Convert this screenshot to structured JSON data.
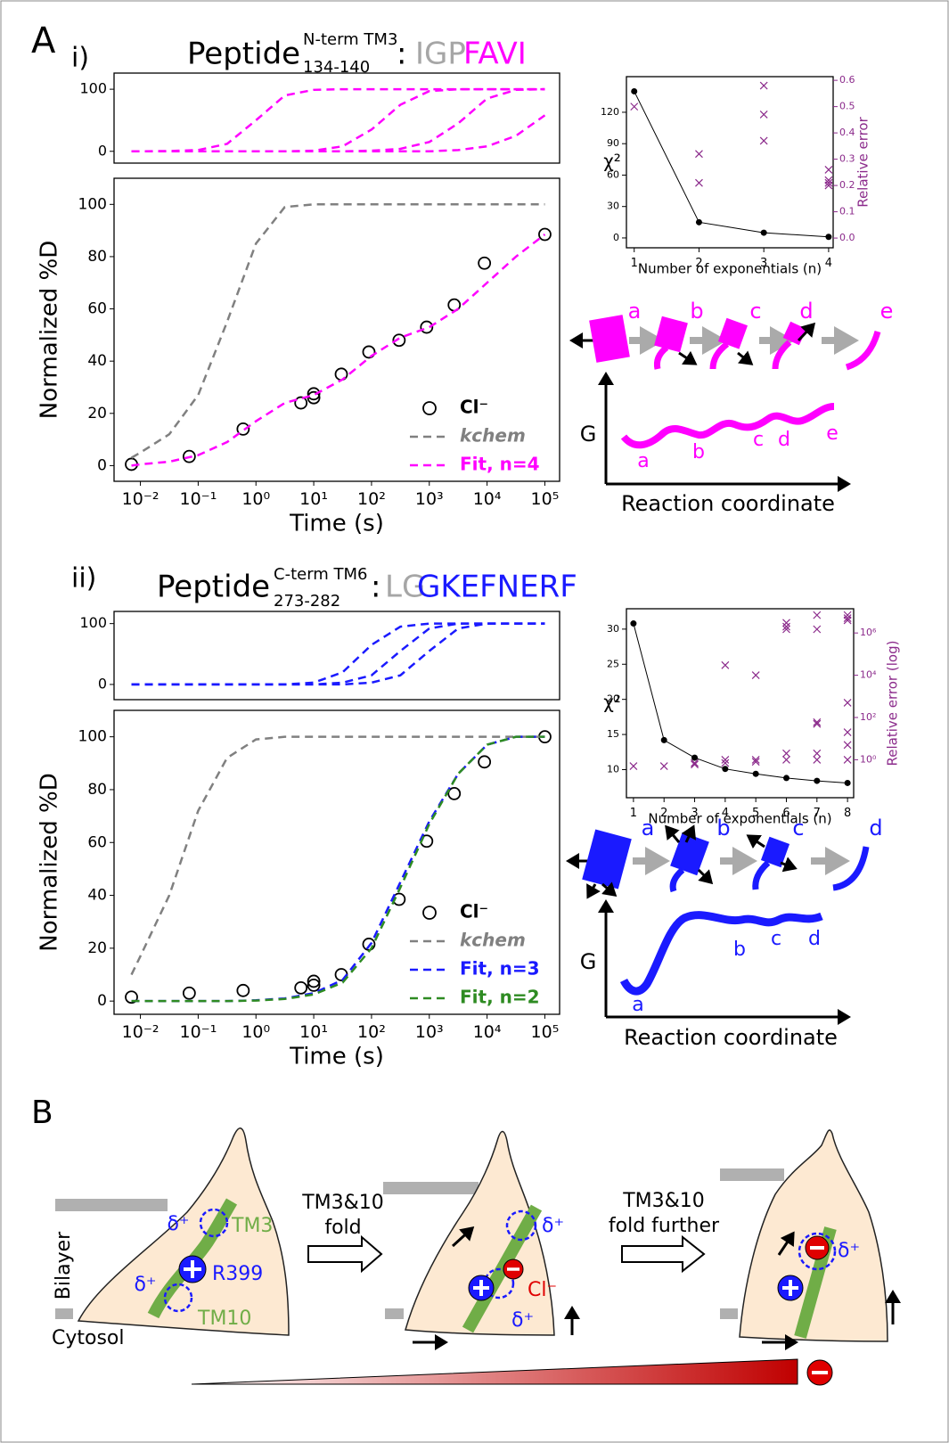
{
  "chart_data": [
    {
      "type": "line",
      "title_parts": [
        "Peptide",
        "N-term TM3",
        "134-140",
        ":",
        "IGP",
        "FAVI"
      ],
      "title_colors": [
        "#000000",
        "#000000",
        "#000000",
        "#000000",
        "#a6a6a6",
        "#ff00ff"
      ],
      "xscale": "log",
      "xlim": [
        0.0035,
        180000
      ],
      "ylim": [
        -19,
        126
      ],
      "yticks": [
        0,
        100
      ],
      "x": [
        0.007,
        0.01,
        0.0316,
        0.1,
        0.316,
        1,
        3.16,
        10,
        31.6,
        100,
        316,
        1000,
        3162,
        10000,
        31623,
        100000
      ],
      "series": [
        {
          "color": "#ff00ff",
          "line": true,
          "dash": true,
          "values": [
            0,
            0,
            0.5,
            2,
            12,
            50,
            90,
            99,
            100,
            100,
            100,
            100,
            100,
            100,
            100,
            100
          ]
        },
        {
          "color": "#ff00ff",
          "line": true,
          "dash": true,
          "values": [
            0,
            0,
            0,
            0,
            0,
            0,
            0,
            1,
            8,
            35,
            75,
            97,
            100,
            100,
            100,
            100
          ]
        },
        {
          "color": "#ff00ff",
          "line": true,
          "dash": true,
          "values": [
            0,
            0,
            0,
            0,
            0,
            0,
            0,
            0,
            0,
            1,
            4,
            15,
            45,
            85,
            99,
            100
          ]
        },
        {
          "color": "#ff00ff",
          "line": true,
          "dash": true,
          "values": [
            0,
            0,
            0,
            0,
            0,
            0,
            0,
            0,
            0,
            0,
            0,
            0,
            2,
            8,
            25,
            58
          ]
        }
      ]
    },
    {
      "type": "line",
      "xscale": "log",
      "xlim": [
        0.0035,
        180000
      ],
      "ylim": [
        -6,
        110
      ],
      "xlabel": "Time (s)",
      "ylabel": "Normalized %D",
      "legend": "lower right",
      "xticks": [
        {
          "value": 0.01,
          "label": "10⁻²"
        },
        {
          "value": 0.1,
          "label": "10⁻¹"
        },
        {
          "value": 1,
          "label": "10⁰"
        },
        {
          "value": 10,
          "label": "10¹"
        },
        {
          "value": 100,
          "label": "10²"
        },
        {
          "value": 1000,
          "label": "10³"
        },
        {
          "value": 10000,
          "label": "10⁴"
        },
        {
          "value": 100000,
          "label": "10⁵"
        }
      ],
      "yticks": [
        0,
        20,
        40,
        60,
        80,
        100
      ],
      "x": [
        0.007,
        0.01,
        0.0316,
        0.1,
        0.316,
        1,
        3.16,
        10,
        31.6,
        100,
        316,
        1000,
        3162,
        10000,
        31623,
        100000
      ],
      "series": [
        {
          "name": "Cl⁻",
          "color": "#000000",
          "marker": "circle",
          "x": [
            0.007,
            0.07,
            0.6,
            6,
            10,
            10,
            30,
            90,
            300,
            900,
            2700,
            9000,
            100000
          ],
          "values": [
            0.5,
            3.5,
            14,
            24,
            26,
            27.5,
            35,
            43.5,
            48,
            53,
            61.5,
            77.5,
            88.5
          ]
        },
        {
          "name": "kchem",
          "color": "#808080",
          "line": true,
          "dash": true,
          "values": [
            3,
            5,
            12,
            27,
            55,
            85,
            99,
            100,
            100,
            100,
            100,
            100,
            100,
            100,
            100,
            100
          ]
        },
        {
          "name": "Fit, n=4",
          "color": "#ff00ff",
          "line": true,
          "dash": true,
          "values": [
            0,
            0.5,
            1.5,
            4,
            9,
            17,
            24,
            27,
            33,
            42,
            49,
            53,
            60,
            70,
            80,
            88.5
          ]
        }
      ]
    },
    {
      "type": "line",
      "xlim": [
        0.88,
        4.07
      ],
      "ylim": [
        -9.4,
        154
      ],
      "y2lim": [
        -0.037,
        0.614
      ],
      "y2color": "#8b2a8b",
      "xlabel": "Number of exponentials (n)",
      "ylabel": "χ²",
      "y2label": "Relative error",
      "xticks": [
        1,
        2,
        3,
        4
      ],
      "yticks": [
        0,
        30,
        60,
        90,
        120
      ],
      "y2ticks": [
        {
          "value": 0,
          "label": "0.0"
        },
        0.1,
        0.2,
        0.3,
        0.4,
        0.5,
        0.6
      ],
      "x": [
        1,
        2,
        3,
        4
      ],
      "series": [
        {
          "color": "#000000",
          "line": true,
          "marker": "dot",
          "values": [
            140,
            15,
            5,
            1
          ]
        },
        {
          "color": "#8b2a8b",
          "marker": "x",
          "axis": "y2",
          "x": [
            1,
            2,
            2,
            3,
            3,
            3,
            4,
            4,
            4,
            4
          ],
          "values": [
            0.5,
            0.32,
            0.21,
            0.58,
            0.47,
            0.37,
            0.26,
            0.22,
            0.2,
            0.21
          ]
        }
      ]
    },
    {
      "type": "line",
      "title_parts": [
        "Peptide",
        "C-term TM6",
        "273-282",
        ":",
        "LG",
        "GKEFNERF"
      ],
      "title_colors": [
        "#000000",
        "#000000",
        "#000000",
        "#000000",
        "#a6a6a6",
        "#1a1aff"
      ],
      "xscale": "log",
      "xlim": [
        0.0035,
        180000
      ],
      "ylim": [
        -25,
        120
      ],
      "yticks": [
        0,
        100
      ],
      "x": [
        0.007,
        0.01,
        0.0316,
        0.1,
        0.316,
        1,
        3.16,
        10,
        31.6,
        100,
        316,
        1000,
        3162,
        10000,
        31623,
        100000
      ],
      "series": [
        {
          "color": "#1a1aff",
          "line": true,
          "dash": true,
          "values": [
            0,
            0,
            0,
            0,
            0,
            0,
            0,
            3,
            20,
            65,
            95,
            100,
            100,
            100,
            100,
            100
          ]
        },
        {
          "color": "#1a1aff",
          "line": true,
          "dash": true,
          "values": [
            0,
            0,
            0,
            0,
            0,
            0,
            0,
            0,
            3,
            15,
            55,
            92,
            100,
            100,
            100,
            100
          ]
        },
        {
          "color": "#1a1aff",
          "line": true,
          "dash": true,
          "values": [
            0,
            0,
            0,
            0,
            0,
            0,
            0,
            0,
            0,
            3,
            15,
            55,
            92,
            100,
            100,
            100
          ]
        }
      ]
    },
    {
      "type": "line",
      "xscale": "log",
      "xlim": [
        0.0035,
        180000
      ],
      "ylim": [
        -5,
        110
      ],
      "xlabel": "Time (s)",
      "ylabel": "Normalized %D",
      "legend": "lower right",
      "xticks": [
        {
          "value": 0.01,
          "label": "10⁻²"
        },
        {
          "value": 0.1,
          "label": "10⁻¹"
        },
        {
          "value": 1,
          "label": "10⁰"
        },
        {
          "value": 10,
          "label": "10¹"
        },
        {
          "value": 100,
          "label": "10²"
        },
        {
          "value": 1000,
          "label": "10³"
        },
        {
          "value": 10000,
          "label": "10⁴"
        },
        {
          "value": 100000,
          "label": "10⁵"
        }
      ],
      "yticks": [
        0,
        20,
        40,
        60,
        80,
        100
      ],
      "x": [
        0.007,
        0.01,
        0.0316,
        0.1,
        0.316,
        1,
        3.16,
        10,
        31.6,
        100,
        316,
        1000,
        3162,
        10000,
        31623,
        100000
      ],
      "series": [
        {
          "name": "Cl⁻",
          "color": "#000000",
          "marker": "circle",
          "x": [
            0.007,
            0.07,
            0.6,
            6,
            10,
            10,
            30,
            90,
            300,
            900,
            2700,
            9000,
            100000
          ],
          "values": [
            1.5,
            3,
            4,
            5,
            6,
            7.5,
            10,
            21.5,
            38.5,
            60.5,
            78.5,
            90.5,
            100
          ]
        },
        {
          "name": "kchem",
          "color": "#808080",
          "line": true,
          "dash": true,
          "values": [
            10,
            17,
            40,
            72,
            92,
            99,
            100,
            100,
            100,
            100,
            100,
            100,
            100,
            100,
            100,
            100
          ]
        },
        {
          "name": "Fit, n=3",
          "color": "#1a1aff",
          "line": true,
          "dash": true,
          "values": [
            0,
            0,
            0,
            0,
            0,
            0.3,
            1,
            3,
            8,
            22,
            45,
            68,
            86,
            97,
            100,
            100
          ]
        },
        {
          "name": "Fit, n=2",
          "color": "#2e8b22",
          "line": true,
          "dash": true,
          "values": [
            0,
            0,
            0,
            0,
            0,
            0.2,
            0.8,
            2.5,
            7,
            20,
            43,
            67,
            86,
            97,
            100,
            100
          ]
        }
      ]
    },
    {
      "type": "line",
      "xlim": [
        0.77,
        8.2
      ],
      "ylim": [
        6,
        32.9
      ],
      "y2scale": "log",
      "y2lim": [
        0.016,
        14000000
      ],
      "y2color": "#8b2a8b",
      "xlabel": "Number of exponentials (n)",
      "ylabel": "χ²",
      "y2label": "Relative error (log)",
      "xticks": [
        1,
        2,
        3,
        4,
        5,
        6,
        7,
        8
      ],
      "yticks": [
        10,
        15,
        20,
        25,
        30
      ],
      "y2ticks": [
        {
          "value": 1,
          "label": "10⁰"
        },
        {
          "value": 100,
          "label": "10²"
        },
        {
          "value": 10000,
          "label": "10⁴"
        },
        {
          "value": 1000000,
          "label": "10⁶"
        }
      ],
      "x": [
        1,
        2,
        3,
        4,
        5,
        6,
        7,
        8
      ],
      "series": [
        {
          "color": "#000000",
          "line": true,
          "marker": "dot",
          "values": [
            30.8,
            14.2,
            11.7,
            10.1,
            9.4,
            8.8,
            8.4,
            8.1
          ]
        },
        {
          "color": "#8b2a8b",
          "marker": "x",
          "axis": "y2",
          "x": [
            1,
            2,
            3,
            3,
            4,
            4,
            4,
            5,
            5,
            5,
            6,
            6,
            6,
            6,
            6,
            7,
            7,
            7,
            7,
            7,
            7,
            8,
            8,
            8,
            8,
            8,
            8,
            8
          ],
          "values": [
            0.5,
            0.5,
            0.6,
            0.7,
            30000,
            0.7,
            1,
            10000,
            1,
            0.8,
            3000000,
            2000000,
            1500000,
            2,
            1,
            7000000,
            1500000,
            60,
            50,
            2,
            1,
            7000000,
            5000000,
            4000000,
            500,
            20,
            5,
            1
          ]
        }
      ]
    }
  ],
  "diagram": {
    "panel_A": "A",
    "panel_B": "B",
    "panel_i": "i)",
    "panel_ii": "ii)",
    "scheme_i": {
      "states": [
        "a",
        "b",
        "c",
        "d",
        "e"
      ],
      "landscape": [
        "a",
        "b",
        "c",
        "d",
        "e"
      ],
      "y_axis": "G",
      "x_axis": "Reaction coordinate"
    },
    "scheme_ii": {
      "states": [
        "a",
        "b",
        "c",
        "d"
      ],
      "landscape": [
        "a",
        "b",
        "c",
        "d"
      ],
      "y_axis": "G",
      "x_axis": "Reaction coordinate"
    },
    "panel_B_texts": {
      "arrow1": [
        "TM3&10",
        "fold"
      ],
      "arrow2": [
        "TM3&10",
        "fold further"
      ],
      "bilayer": "Bilayer",
      "cytosol": "Cytosol",
      "tm3": "TM3",
      "tm10": "TM10",
      "r399": "R399",
      "chloride": "Cl⁻",
      "deltas": [
        "δ⁺",
        "δ⁺",
        "δ⁺",
        "δ⁺",
        "δ⁺"
      ]
    }
  }
}
